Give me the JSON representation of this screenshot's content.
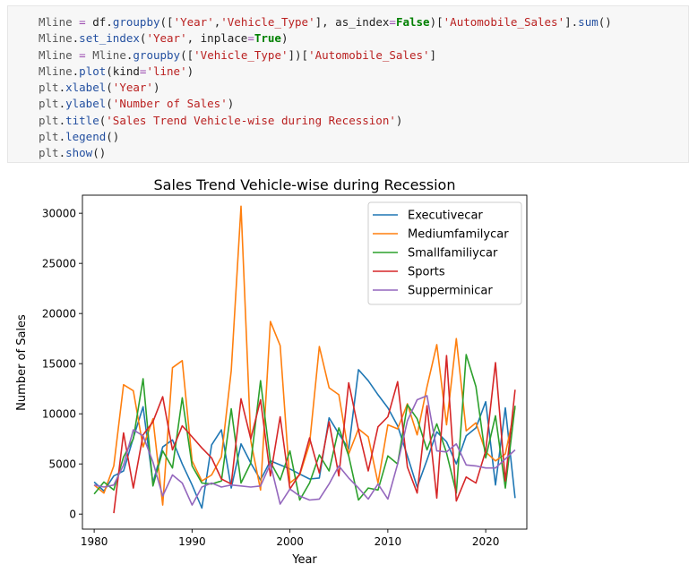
{
  "code_lines": [
    [
      [
        "Mline",
        "var"
      ],
      [
        " = ",
        "op"
      ],
      [
        "df",
        "plain"
      ],
      [
        ".",
        "plain"
      ],
      [
        "groupby",
        "attr"
      ],
      [
        "([",
        "plain"
      ],
      [
        "'Year'",
        "str"
      ],
      [
        ",",
        "plain"
      ],
      [
        "'Vehicle_Type'",
        "str"
      ],
      [
        "], as_index",
        "plain"
      ],
      [
        "=",
        "op"
      ],
      [
        "False",
        "kw"
      ],
      [
        ")[",
        "plain"
      ],
      [
        "'Automobile_Sales'",
        "str"
      ],
      [
        "].",
        "plain"
      ],
      [
        "sum",
        "attr"
      ],
      [
        "()",
        "plain"
      ]
    ],
    [
      [
        "Mline",
        "var"
      ],
      [
        ".",
        "plain"
      ],
      [
        "set_index",
        "attr"
      ],
      [
        "(",
        "plain"
      ],
      [
        "'Year'",
        "str"
      ],
      [
        ", inplace",
        "plain"
      ],
      [
        "=",
        "op"
      ],
      [
        "True",
        "kw"
      ],
      [
        ")",
        "plain"
      ]
    ],
    [
      [
        "Mline",
        "var"
      ],
      [
        " = ",
        "op"
      ],
      [
        "Mline",
        "var"
      ],
      [
        ".",
        "plain"
      ],
      [
        "groupby",
        "attr"
      ],
      [
        "([",
        "plain"
      ],
      [
        "'Vehicle_Type'",
        "str"
      ],
      [
        "])[",
        "plain"
      ],
      [
        "'Automobile_Sales'",
        "str"
      ],
      [
        "]",
        "plain"
      ]
    ],
    [
      [
        "Mline",
        "var"
      ],
      [
        ".",
        "plain"
      ],
      [
        "plot",
        "attr"
      ],
      [
        "(kind",
        "plain"
      ],
      [
        "=",
        "op"
      ],
      [
        "'line'",
        "str"
      ],
      [
        ")",
        "plain"
      ]
    ],
    [
      [
        "plt",
        "var"
      ],
      [
        ".",
        "plain"
      ],
      [
        "xlabel",
        "attr"
      ],
      [
        "(",
        "plain"
      ],
      [
        "'Year'",
        "str"
      ],
      [
        ")",
        "plain"
      ]
    ],
    [
      [
        "plt",
        "var"
      ],
      [
        ".",
        "plain"
      ],
      [
        "ylabel",
        "attr"
      ],
      [
        "(",
        "plain"
      ],
      [
        "'Number of Sales'",
        "str"
      ],
      [
        ")",
        "plain"
      ]
    ],
    [
      [
        "plt",
        "var"
      ],
      [
        ".",
        "plain"
      ],
      [
        "title",
        "attr"
      ],
      [
        "(",
        "plain"
      ],
      [
        "'Sales Trend Vehicle-wise during Recession'",
        "str"
      ],
      [
        ")",
        "plain"
      ]
    ],
    [
      [
        "plt",
        "var"
      ],
      [
        ".",
        "plain"
      ],
      [
        "legend",
        "attr"
      ],
      [
        "()",
        "plain"
      ]
    ],
    [
      [
        "plt",
        "var"
      ],
      [
        ".",
        "plain"
      ],
      [
        "show",
        "attr"
      ],
      [
        "()",
        "plain"
      ]
    ]
  ],
  "chart_data": {
    "type": "line",
    "title": "Sales Trend Vehicle-wise during Recession",
    "xlabel": "Year",
    "ylabel": "Number of Sales",
    "xlim": [
      1978.8,
      2024.2
    ],
    "ylim": [
      -1500,
      31800
    ],
    "xticks": [
      1980,
      1990,
      2000,
      2010,
      2020
    ],
    "yticks": [
      0,
      5000,
      10000,
      15000,
      20000,
      25000,
      30000
    ],
    "grid": false,
    "legend_position": "top-right",
    "series": [
      {
        "name": "Executivecar",
        "color": "#1f77b4",
        "points": [
          [
            1980,
            3200
          ],
          [
            1981,
            2300
          ],
          [
            1982,
            3800
          ],
          [
            1983,
            4300
          ],
          [
            1984,
            7600
          ],
          [
            1985,
            10700
          ],
          [
            1986,
            3100
          ],
          [
            1987,
            6700
          ],
          [
            1988,
            7400
          ],
          [
            1989,
            5000
          ],
          [
            1990,
            2900
          ],
          [
            1991,
            600
          ],
          [
            1992,
            6900
          ],
          [
            1993,
            8400
          ],
          [
            1994,
            2600
          ],
          [
            1995,
            7000
          ],
          [
            1996,
            5100
          ],
          [
            1997,
            3400
          ],
          [
            1998,
            5300
          ],
          [
            1999,
            4900
          ],
          [
            2000,
            4500
          ],
          [
            2001,
            4000
          ],
          [
            2002,
            3500
          ],
          [
            2003,
            3600
          ],
          [
            2004,
            9600
          ],
          [
            2005,
            8000
          ],
          [
            2006,
            6500
          ],
          [
            2007,
            14400
          ],
          [
            2008,
            13300
          ],
          [
            2009,
            11900
          ],
          [
            2010,
            10600
          ],
          [
            2011,
            8800
          ],
          [
            2012,
            5800
          ],
          [
            2013,
            2700
          ],
          [
            2014,
            5400
          ],
          [
            2015,
            8200
          ],
          [
            2016,
            7200
          ],
          [
            2017,
            5000
          ],
          [
            2018,
            7800
          ],
          [
            2019,
            8600
          ],
          [
            2020,
            11200
          ],
          [
            2021,
            2900
          ],
          [
            2022,
            10600
          ],
          [
            2023,
            1600
          ]
        ]
      },
      {
        "name": "Mediumfamilycar",
        "color": "#ff7f0e",
        "points": [
          [
            1980,
            2900
          ],
          [
            1981,
            2100
          ],
          [
            1982,
            4800
          ],
          [
            1983,
            12900
          ],
          [
            1984,
            12300
          ],
          [
            1985,
            6700
          ],
          [
            1986,
            9500
          ],
          [
            1987,
            900
          ],
          [
            1988,
            14600
          ],
          [
            1989,
            15300
          ],
          [
            1990,
            5300
          ],
          [
            1991,
            3300
          ],
          [
            1992,
            3900
          ],
          [
            1993,
            5700
          ],
          [
            1994,
            14300
          ],
          [
            1995,
            30700
          ],
          [
            1996,
            7300
          ],
          [
            1997,
            2400
          ],
          [
            1998,
            19200
          ],
          [
            1999,
            16800
          ],
          [
            2000,
            3100
          ],
          [
            2001,
            3900
          ],
          [
            2002,
            7000
          ],
          [
            2003,
            16700
          ],
          [
            2004,
            12600
          ],
          [
            2005,
            11900
          ],
          [
            2006,
            6000
          ],
          [
            2007,
            8500
          ],
          [
            2008,
            7700
          ],
          [
            2009,
            3100
          ],
          [
            2010,
            8900
          ],
          [
            2011,
            8500
          ],
          [
            2012,
            11000
          ],
          [
            2013,
            7900
          ],
          [
            2014,
            12700
          ],
          [
            2015,
            16900
          ],
          [
            2016,
            8900
          ],
          [
            2017,
            17500
          ],
          [
            2018,
            8300
          ],
          [
            2019,
            9100
          ],
          [
            2020,
            6200
          ],
          [
            2021,
            5300
          ],
          [
            2022,
            6000
          ],
          [
            2023,
            10600
          ]
        ]
      },
      {
        "name": "Smallfamiliycar",
        "color": "#2ca02c",
        "points": [
          [
            1980,
            2000
          ],
          [
            1981,
            3200
          ],
          [
            1982,
            2400
          ],
          [
            1983,
            5700
          ],
          [
            1984,
            7500
          ],
          [
            1985,
            13500
          ],
          [
            1986,
            2800
          ],
          [
            1987,
            6300
          ],
          [
            1988,
            4600
          ],
          [
            1989,
            11600
          ],
          [
            1990,
            4800
          ],
          [
            1991,
            3100
          ],
          [
            1992,
            3000
          ],
          [
            1993,
            3300
          ],
          [
            1994,
            10500
          ],
          [
            1995,
            3100
          ],
          [
            1996,
            5100
          ],
          [
            1997,
            13300
          ],
          [
            1998,
            5200
          ],
          [
            1999,
            3400
          ],
          [
            2000,
            6300
          ],
          [
            2001,
            1400
          ],
          [
            2002,
            3100
          ],
          [
            2003,
            5900
          ],
          [
            2004,
            4300
          ],
          [
            2005,
            8600
          ],
          [
            2006,
            5800
          ],
          [
            2007,
            1400
          ],
          [
            2008,
            2600
          ],
          [
            2009,
            2400
          ],
          [
            2010,
            5800
          ],
          [
            2011,
            5000
          ],
          [
            2012,
            10900
          ],
          [
            2013,
            9500
          ],
          [
            2014,
            6400
          ],
          [
            2015,
            9000
          ],
          [
            2016,
            6100
          ],
          [
            2017,
            2100
          ],
          [
            2018,
            15900
          ],
          [
            2019,
            12700
          ],
          [
            2020,
            5600
          ],
          [
            2021,
            9800
          ],
          [
            2022,
            2600
          ],
          [
            2023,
            10800
          ]
        ]
      },
      {
        "name": "Sports",
        "color": "#d62728",
        "points": [
          [
            1982,
            100
          ],
          [
            1983,
            8100
          ],
          [
            1984,
            2600
          ],
          [
            1985,
            7900
          ],
          [
            1986,
            9200
          ],
          [
            1987,
            11700
          ],
          [
            1988,
            6400
          ],
          [
            1989,
            8800
          ],
          [
            1990,
            7700
          ],
          [
            1991,
            6600
          ],
          [
            1992,
            5600
          ],
          [
            1993,
            3500
          ],
          [
            1994,
            3000
          ],
          [
            1995,
            11500
          ],
          [
            1996,
            7500
          ],
          [
            1997,
            11400
          ],
          [
            1998,
            3800
          ],
          [
            1999,
            9700
          ],
          [
            2000,
            2500
          ],
          [
            2001,
            4000
          ],
          [
            2002,
            7600
          ],
          [
            2003,
            4100
          ],
          [
            2004,
            9200
          ],
          [
            2005,
            3800
          ],
          [
            2006,
            13100
          ],
          [
            2007,
            8400
          ],
          [
            2008,
            4300
          ],
          [
            2009,
            8700
          ],
          [
            2010,
            9700
          ],
          [
            2011,
            13200
          ],
          [
            2012,
            4700
          ],
          [
            2013,
            2100
          ],
          [
            2014,
            10800
          ],
          [
            2015,
            1600
          ],
          [
            2016,
            15800
          ],
          [
            2017,
            1300
          ],
          [
            2018,
            3700
          ],
          [
            2019,
            3100
          ],
          [
            2020,
            6300
          ],
          [
            2021,
            15100
          ],
          [
            2022,
            3300
          ],
          [
            2023,
            12400
          ]
        ]
      },
      {
        "name": "Supperminicar",
        "color": "#9467bd",
        "points": [
          [
            1980,
            2900
          ],
          [
            1981,
            2700
          ],
          [
            1982,
            2900
          ],
          [
            1983,
            4900
          ],
          [
            1984,
            8400
          ],
          [
            1985,
            7800
          ],
          [
            1986,
            5200
          ],
          [
            1987,
            1800
          ],
          [
            1988,
            3900
          ],
          [
            1989,
            3100
          ],
          [
            1990,
            900
          ],
          [
            1991,
            2700
          ],
          [
            1992,
            3100
          ],
          [
            1993,
            2700
          ],
          [
            1994,
            2900
          ],
          [
            1995,
            2800
          ],
          [
            1996,
            2700
          ],
          [
            1997,
            2800
          ],
          [
            1998,
            5000
          ],
          [
            1999,
            1000
          ],
          [
            2000,
            2500
          ],
          [
            2001,
            1800
          ],
          [
            2002,
            1400
          ],
          [
            2003,
            1500
          ],
          [
            2004,
            3000
          ],
          [
            2005,
            4800
          ],
          [
            2006,
            3600
          ],
          [
            2007,
            2600
          ],
          [
            2008,
            1500
          ],
          [
            2009,
            3000
          ],
          [
            2010,
            1500
          ],
          [
            2011,
            5000
          ],
          [
            2012,
            9300
          ],
          [
            2013,
            11400
          ],
          [
            2014,
            11800
          ],
          [
            2015,
            6300
          ],
          [
            2016,
            6200
          ],
          [
            2017,
            7000
          ],
          [
            2018,
            4900
          ],
          [
            2019,
            4800
          ],
          [
            2020,
            4600
          ],
          [
            2021,
            4600
          ],
          [
            2022,
            5500
          ],
          [
            2023,
            6400
          ]
        ]
      }
    ]
  }
}
